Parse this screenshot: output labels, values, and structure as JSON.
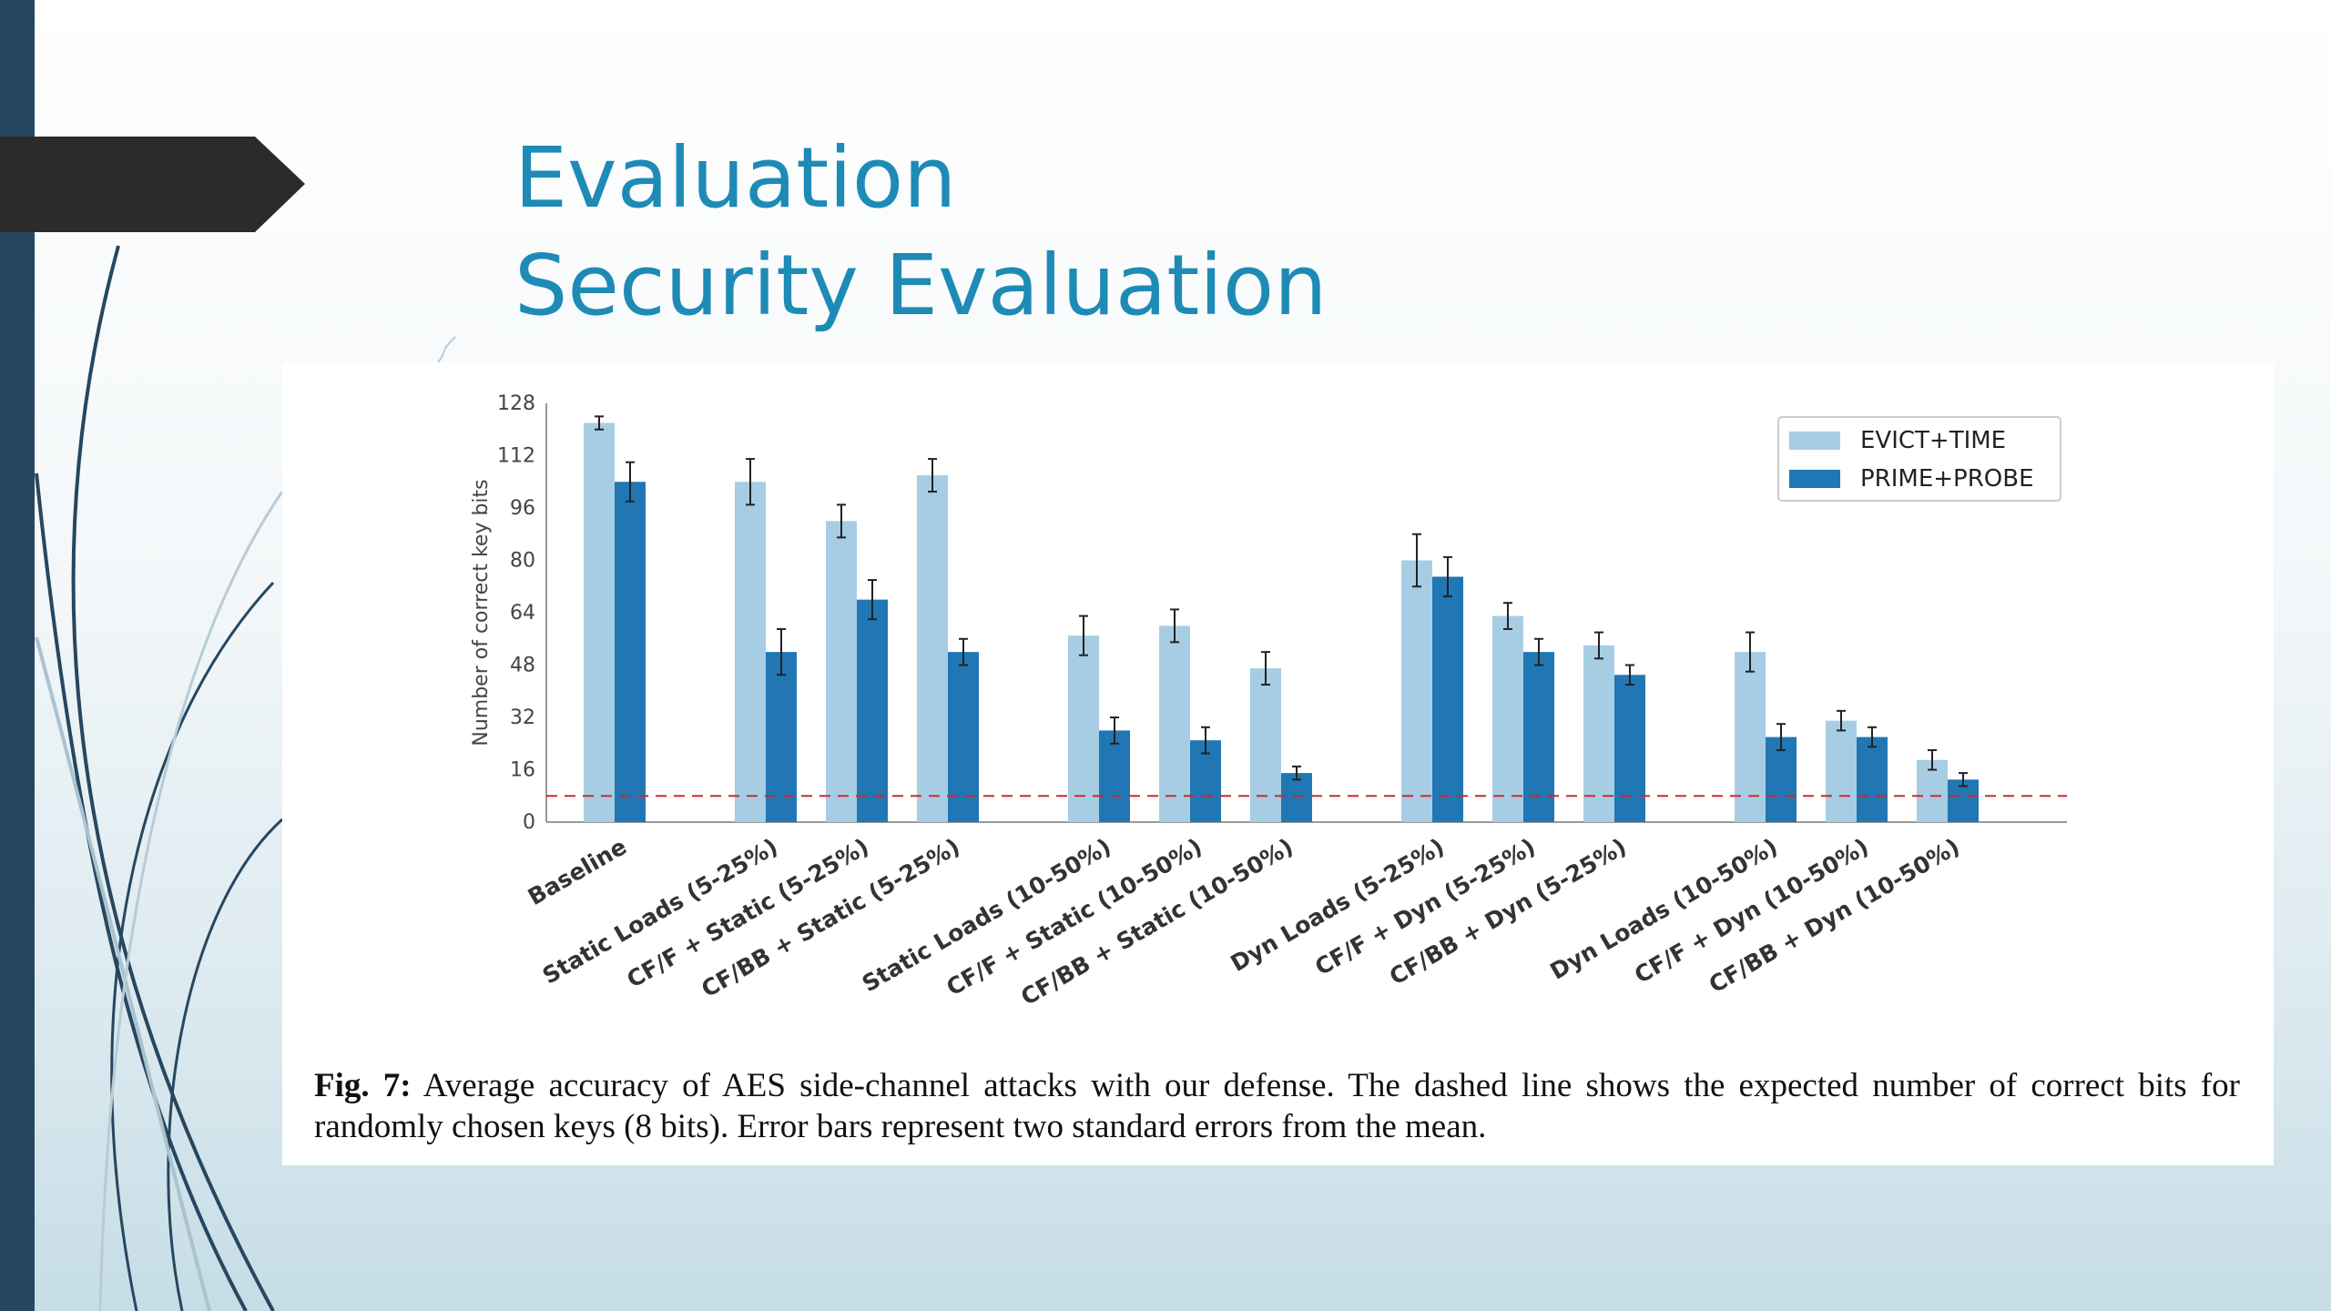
{
  "slide": {
    "title": "Evaluation",
    "subtitle": "Security Evaluation"
  },
  "caption": {
    "fig_label": "Fig. 7:",
    "text": "Average accuracy of AES side-channel attacks with our defense. The dashed line shows the expected number of correct bits for randomly chosen keys (8 bits). Error bars represent two standard errors from the mean."
  },
  "colors": {
    "accent": "#1d8bb5",
    "sidebar": "#26475f",
    "evict_time": "#a6cde3",
    "prime_probe": "#2077b4",
    "dashed_line": "#d62728"
  },
  "chart_data": {
    "type": "bar",
    "ylabel": "Number of correct key bits",
    "xlabel": "",
    "ylim": [
      0,
      128
    ],
    "yticks": [
      0,
      16,
      32,
      48,
      64,
      80,
      96,
      112,
      128
    ],
    "grid": false,
    "legend_position": "top-right",
    "baseline_reference": {
      "value": 8,
      "style": "dashed"
    },
    "categories": [
      "Baseline",
      "Static Loads (5-25%)",
      "CF/F + Static (5-25%)",
      "CF/BB + Static (5-25%)",
      "Static Loads (10-50%)",
      "CF/F + Static (10-50%)",
      "CF/BB + Static (10-50%)",
      "Dyn Loads (5-25%)",
      "CF/F + Dyn (5-25%)",
      "CF/BB + Dyn (5-25%)",
      "Dyn Loads (10-50%)",
      "CF/F + Dyn (10-50%)",
      "CF/BB + Dyn (10-50%)"
    ],
    "series": [
      {
        "name": "EVICT+TIME",
        "values": [
          122,
          104,
          92,
          106,
          57,
          60,
          47,
          80,
          63,
          54,
          52,
          31,
          19
        ],
        "errors": [
          2,
          7,
          5,
          5,
          6,
          5,
          5,
          8,
          4,
          4,
          6,
          3,
          3
        ]
      },
      {
        "name": "PRIME+PROBE",
        "values": [
          104,
          52,
          68,
          52,
          28,
          25,
          15,
          75,
          52,
          45,
          26,
          26,
          13
        ],
        "errors": [
          6,
          7,
          6,
          4,
          4,
          4,
          2,
          6,
          4,
          3,
          4,
          3,
          2
        ]
      }
    ]
  }
}
